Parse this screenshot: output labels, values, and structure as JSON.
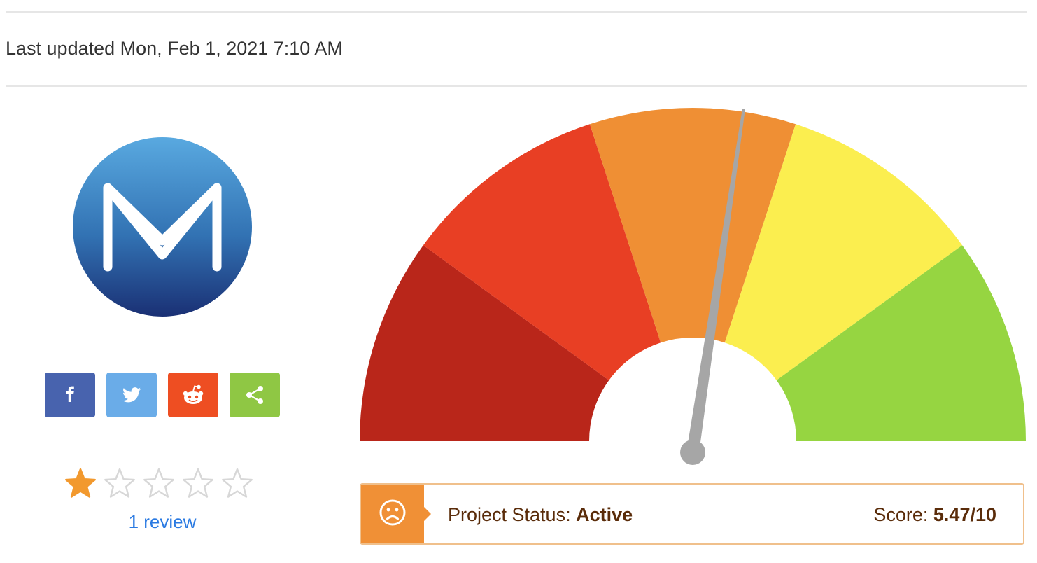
{
  "header": {
    "last_updated": "Last updated Mon, Feb 1, 2021 7:10 AM"
  },
  "project": {
    "logo_icon": "mm-logo-icon"
  },
  "share": {
    "buttons": [
      {
        "name": "facebook-icon",
        "color": "#4863ae"
      },
      {
        "name": "twitter-icon",
        "color": "#6aace8"
      },
      {
        "name": "reddit-icon",
        "color": "#ee4e22"
      },
      {
        "name": "share-icon",
        "color": "#8fc744"
      }
    ]
  },
  "rating": {
    "filled_stars": 1,
    "max_stars": 5,
    "star_color": "#f2992e",
    "empty_star_color": "#d7d7d7",
    "review_text": "1 review"
  },
  "gauge": {
    "segments": [
      {
        "color": "#b9261a"
      },
      {
        "color": "#e83f24"
      },
      {
        "color": "#ef8f34"
      },
      {
        "color": "#fbee4f"
      },
      {
        "color": "#96d541"
      }
    ],
    "needle_color": "#a6a6a6",
    "score_max": 10,
    "score_value": 5.47
  },
  "status": {
    "icon": "sad-face-icon",
    "label": "Project Status: ",
    "value": "Active",
    "score_label": "Score: ",
    "score_value": "5.47/10",
    "accent_color": "#f09036"
  }
}
